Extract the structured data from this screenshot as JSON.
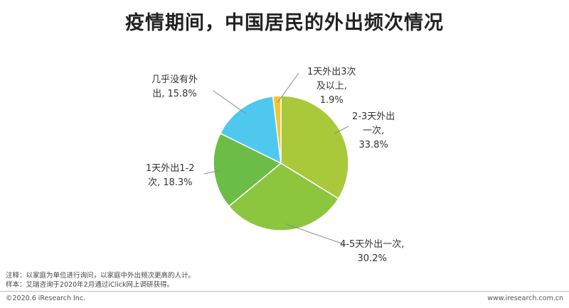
{
  "title": "疫情期间，中国居民的外出频次情况",
  "chart_data": {
    "type": "pie",
    "title": "疫情期间，中国居民的外出频次情况",
    "slices": [
      {
        "line1": "2-3天外出",
        "line2": "一次,",
        "line3": "33.8%",
        "value": 33.8,
        "color": "#a9c93a"
      },
      {
        "line1": "4-5天外出一次,",
        "line2": "30.2%",
        "line3": "",
        "value": 30.2,
        "color": "#8cc63f"
      },
      {
        "line1": "1天外出1-2",
        "line2": "次, 18.3%",
        "line3": "",
        "value": 18.3,
        "color": "#6cbd45"
      },
      {
        "line1": "几乎没有外",
        "line2": "出, 15.8%",
        "line3": "",
        "value": 15.8,
        "color": "#4fc8f0"
      },
      {
        "line1": "1天外出3次",
        "line2": "及以上,",
        "line3": "1.9%",
        "value": 1.9,
        "color": "#f5c431"
      }
    ],
    "start_angle_deg": 0,
    "direction": "clockwise"
  },
  "notes": {
    "line1": "注释：以家庭为单位进行询问，以家庭中外出频次更高的人计。",
    "line2": "样本：艾瑞咨询于2020年2月通过iClick网上调研获得。"
  },
  "footer": {
    "copyright": "©2020.6 iResearch Inc.",
    "website": "www.iresearch.com.cn"
  }
}
